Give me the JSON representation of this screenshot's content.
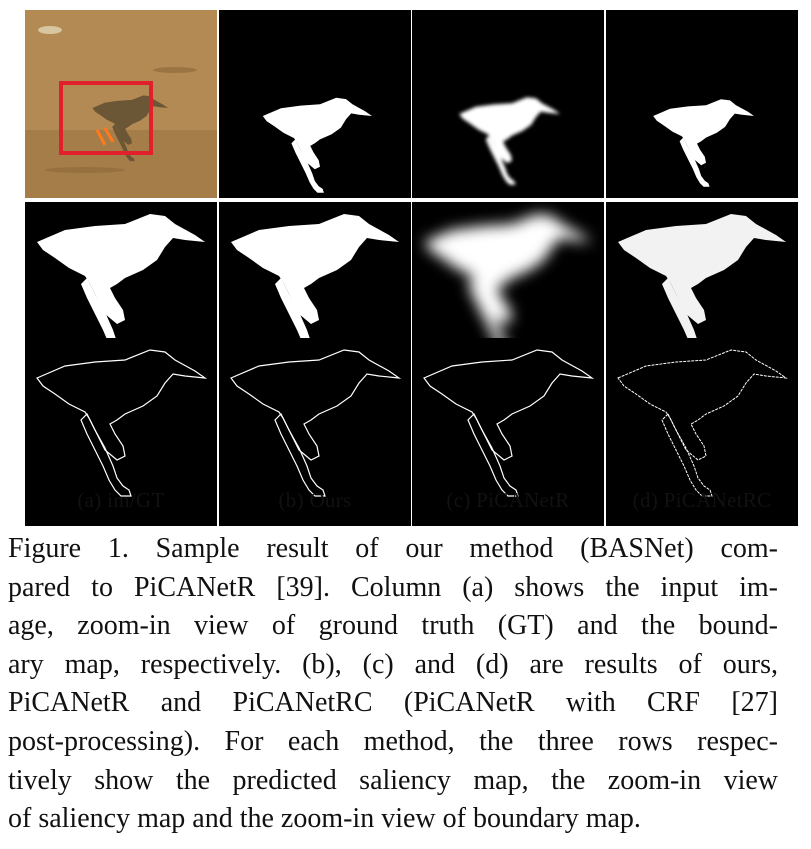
{
  "subfigure_labels": {
    "a": "(a)  im/GT",
    "b": "(b)  Ours",
    "c": "(c)  PiCANetR",
    "d": "(d)  PiCANetRC"
  },
  "caption": {
    "lines": [
      "Figure 1.   Sample result of our method (BASNet) com-",
      "pared to PiCANetR [39].  Column (a) shows the input im-",
      "age, zoom-in view of ground truth (GT) and the bound-",
      "ary map, respectively.  (b), (c) and (d) are results of ours,",
      "PiCANetR and PiCANetRC (PiCANetR with CRF [27]",
      "post-processing).  For each method, the three rows respec-",
      "tively show the predicted saliency map, the zoom-in view",
      "of saliency map and the zoom-in view of boundary map."
    ]
  },
  "colors": {
    "panel_background": "#000000",
    "sand": "#b48a54",
    "highlight_box": "#e0202a",
    "mask": "#ffffff"
  }
}
